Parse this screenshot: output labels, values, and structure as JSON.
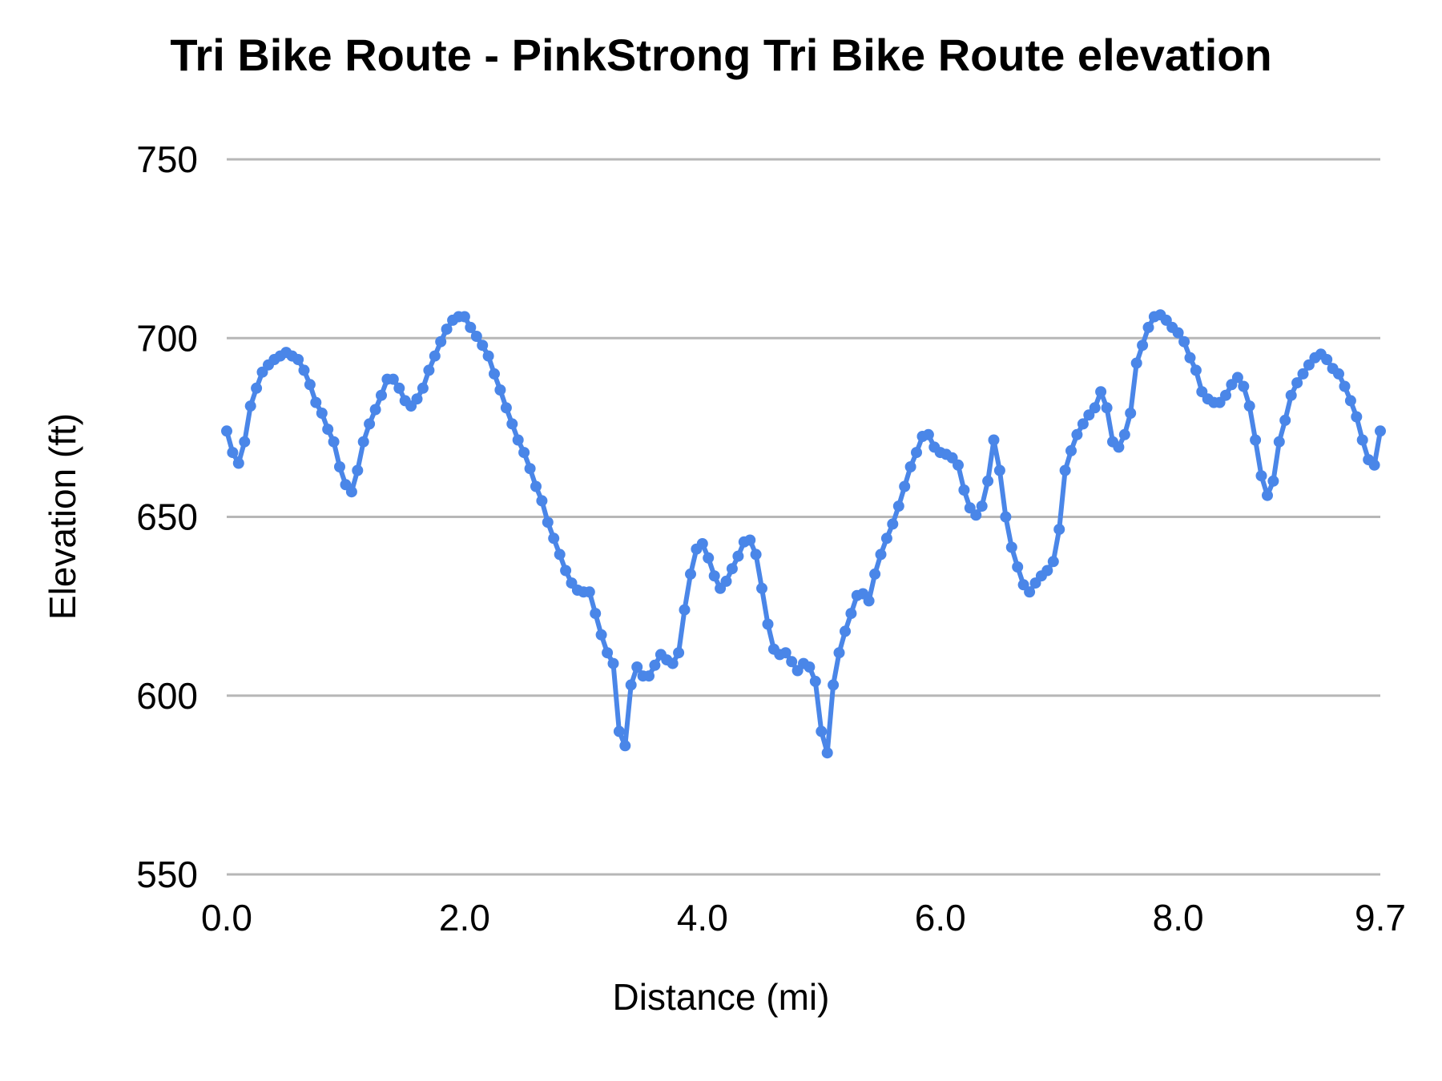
{
  "chart_data": {
    "type": "line",
    "title": "Tri Bike Route - PinkStrong Tri Bike Route elevation",
    "xlabel": "Distance (mi)",
    "ylabel": "Elevation (ft)",
    "xlim": [
      0,
      9.7
    ],
    "ylim": [
      550,
      750
    ],
    "x_tick_values": [
      0,
      2,
      4,
      6,
      8,
      9.7
    ],
    "x_tick_labels": [
      "0.0",
      "2.0",
      "4.0",
      "6.0",
      "8.0",
      "9.7"
    ],
    "y_tick_values": [
      550,
      600,
      650,
      700,
      750
    ],
    "y_tick_labels": [
      "550",
      "600",
      "650",
      "700",
      "750"
    ],
    "grid": "horizontal-only",
    "legend": "none",
    "marker": "circle",
    "series_name": "elevation",
    "colors": {
      "series": "#4a86e8",
      "gridline": "#b7b7b7",
      "text": "#000000",
      "background": "#ffffff"
    },
    "x": [
      0,
      0.05,
      0.1,
      0.15,
      0.2,
      0.25,
      0.3,
      0.35,
      0.4,
      0.45,
      0.5,
      0.55,
      0.6,
      0.65,
      0.7,
      0.75,
      0.8,
      0.85,
      0.9,
      0.95,
      1,
      1.05,
      1.1,
      1.15,
      1.2,
      1.25,
      1.3,
      1.35,
      1.4,
      1.45,
      1.5,
      1.55,
      1.6,
      1.65,
      1.7,
      1.75,
      1.8,
      1.85,
      1.9,
      1.95,
      2,
      2.05,
      2.1,
      2.15,
      2.2,
      2.25,
      2.3,
      2.35,
      2.4,
      2.45,
      2.5,
      2.55,
      2.6,
      2.65,
      2.7,
      2.75,
      2.8,
      2.85,
      2.9,
      2.95,
      3,
      3.05,
      3.1,
      3.15,
      3.2,
      3.25,
      3.3,
      3.35,
      3.4,
      3.45,
      3.5,
      3.55,
      3.6,
      3.65,
      3.7,
      3.75,
      3.8,
      3.85,
      3.9,
      3.95,
      4,
      4.05,
      4.1,
      4.15,
      4.2,
      4.25,
      4.3,
      4.35,
      4.4,
      4.45,
      4.5,
      4.55,
      4.6,
      4.65,
      4.7,
      4.75,
      4.8,
      4.85,
      4.9,
      4.95,
      5,
      5.05,
      5.1,
      5.15,
      5.2,
      5.25,
      5.3,
      5.35,
      5.4,
      5.45,
      5.5,
      5.55,
      5.6,
      5.65,
      5.7,
      5.75,
      5.8,
      5.85,
      5.9,
      5.95,
      6,
      6.05,
      6.1,
      6.15,
      6.2,
      6.25,
      6.3,
      6.35,
      6.4,
      6.45,
      6.5,
      6.55,
      6.6,
      6.65,
      6.7,
      6.75,
      6.8,
      6.85,
      6.9,
      6.95,
      7,
      7.05,
      7.1,
      7.15,
      7.2,
      7.25,
      7.3,
      7.35,
      7.4,
      7.45,
      7.5,
      7.55,
      7.6,
      7.65,
      7.7,
      7.75,
      7.8,
      7.85,
      7.9,
      7.95,
      8,
      8.05,
      8.1,
      8.15,
      8.2,
      8.25,
      8.3,
      8.35,
      8.4,
      8.45,
      8.5,
      8.55,
      8.6,
      8.65,
      8.7,
      8.75,
      8.8,
      8.85,
      8.9,
      8.95,
      9,
      9.05,
      9.1,
      9.15,
      9.2,
      9.25,
      9.3,
      9.35,
      9.4,
      9.45,
      9.5,
      9.55,
      9.6,
      9.65,
      9.7
    ],
    "y": [
      674,
      668,
      665,
      671,
      681,
      686,
      690.5,
      692.5,
      694,
      695,
      696,
      695,
      694,
      691,
      687,
      682,
      679,
      674.5,
      671,
      664,
      659,
      657,
      663,
      671,
      676,
      680,
      684,
      688.5,
      688.5,
      686,
      682.5,
      681,
      683,
      686,
      691,
      695,
      699,
      702.5,
      705,
      706,
      706,
      703,
      700.5,
      698,
      695,
      690,
      685.5,
      680.5,
      676,
      671.5,
      668,
      663.5,
      658.5,
      654.5,
      648.5,
      644,
      639.5,
      635,
      631.5,
      629.5,
      629,
      629,
      623,
      617,
      612,
      609,
      590,
      586,
      603,
      608,
      605.5,
      605.5,
      608.5,
      611.5,
      610,
      609,
      612,
      624,
      634,
      641,
      642.5,
      638.5,
      633.5,
      630,
      632,
      635.5,
      639,
      643,
      643.5,
      639.5,
      630,
      620,
      613,
      611.5,
      612,
      609.5,
      607,
      609,
      608,
      604,
      590,
      584,
      603,
      612,
      618,
      623,
      628,
      628.5,
      626.5,
      634,
      639.5,
      644,
      648,
      653,
      658.5,
      664,
      668,
      672.5,
      673,
      669.5,
      668,
      667.5,
      666.5,
      664.5,
      657.5,
      652.5,
      650.5,
      653,
      660,
      671.5,
      663,
      650,
      641.5,
      636,
      631,
      629,
      631.5,
      633.5,
      635,
      637.5,
      646.5,
      663,
      668.5,
      673,
      676,
      678.5,
      680.5,
      685,
      680.5,
      671,
      669.5,
      673,
      679,
      693,
      698,
      703,
      706,
      706.5,
      705,
      703,
      701.5,
      699,
      694.5,
      691,
      685,
      683,
      682,
      682,
      684,
      687,
      689,
      686.5,
      681,
      671.5,
      661.5,
      656,
      660,
      671,
      677,
      684,
      687.5,
      690,
      692.5,
      694.5,
      695.5,
      694,
      691.5,
      690,
      686.5,
      682.5,
      678,
      671.5,
      666,
      664.5,
      674
    ]
  }
}
